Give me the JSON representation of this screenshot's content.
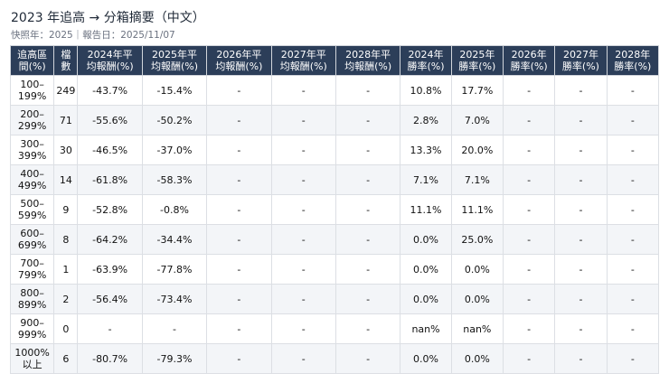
{
  "header": {
    "title": "2023 年追高 → 分箱摘要（中文）",
    "subtitle": "快照年：2025｜報告日：2025/11/07"
  },
  "table": {
    "columns": [
      [
        "追高區",
        "間(%)"
      ],
      [
        "檔",
        "數"
      ],
      [
        "2024年平",
        "均報酬(%)"
      ],
      [
        "2025年平",
        "均報酬(%)"
      ],
      [
        "2026年平",
        "均報酬(%)"
      ],
      [
        "2027年平",
        "均報酬(%)"
      ],
      [
        "2028年平",
        "均報酬(%)"
      ],
      [
        "2024年",
        "勝率(%)"
      ],
      [
        "2025年",
        "勝率(%)"
      ],
      [
        "2026年",
        "勝率(%)"
      ],
      [
        "2027年",
        "勝率(%)"
      ],
      [
        "2028年",
        "勝率(%)"
      ]
    ],
    "rows": [
      {
        "range": [
          "100–",
          "199%"
        ],
        "cells": [
          "249",
          "-43.7%",
          "-15.4%",
          "-",
          "-",
          "-",
          "10.8%",
          "17.7%",
          "-",
          "-",
          "-"
        ]
      },
      {
        "range": [
          "200–",
          "299%"
        ],
        "cells": [
          "71",
          "-55.6%",
          "-50.2%",
          "-",
          "-",
          "-",
          "2.8%",
          "7.0%",
          "-",
          "-",
          "-"
        ]
      },
      {
        "range": [
          "300–",
          "399%"
        ],
        "cells": [
          "30",
          "-46.5%",
          "-37.0%",
          "-",
          "-",
          "-",
          "13.3%",
          "20.0%",
          "-",
          "-",
          "-"
        ]
      },
      {
        "range": [
          "400–",
          "499%"
        ],
        "cells": [
          "14",
          "-61.8%",
          "-58.3%",
          "-",
          "-",
          "-",
          "7.1%",
          "7.1%",
          "-",
          "-",
          "-"
        ]
      },
      {
        "range": [
          "500–",
          "599%"
        ],
        "cells": [
          "9",
          "-52.8%",
          "-0.8%",
          "-",
          "-",
          "-",
          "11.1%",
          "11.1%",
          "-",
          "-",
          "-"
        ]
      },
      {
        "range": [
          "600–",
          "699%"
        ],
        "cells": [
          "8",
          "-64.2%",
          "-34.4%",
          "-",
          "-",
          "-",
          "0.0%",
          "25.0%",
          "-",
          "-",
          "-"
        ]
      },
      {
        "range": [
          "700–",
          "799%"
        ],
        "cells": [
          "1",
          "-63.9%",
          "-77.8%",
          "-",
          "-",
          "-",
          "0.0%",
          "0.0%",
          "-",
          "-",
          "-"
        ]
      },
      {
        "range": [
          "800–",
          "899%"
        ],
        "cells": [
          "2",
          "-56.4%",
          "-73.4%",
          "-",
          "-",
          "-",
          "0.0%",
          "0.0%",
          "-",
          "-",
          "-"
        ]
      },
      {
        "range": [
          "900–",
          "999%"
        ],
        "cells": [
          "0",
          "-",
          "-",
          "-",
          "-",
          "-",
          "nan%",
          "nan%",
          "-",
          "-",
          "-"
        ]
      },
      {
        "range": [
          "1000%",
          "以上"
        ],
        "cells": [
          "6",
          "-80.7%",
          "-79.3%",
          "-",
          "-",
          "-",
          "0.0%",
          "0.0%",
          "-",
          "-",
          "-"
        ]
      }
    ]
  }
}
